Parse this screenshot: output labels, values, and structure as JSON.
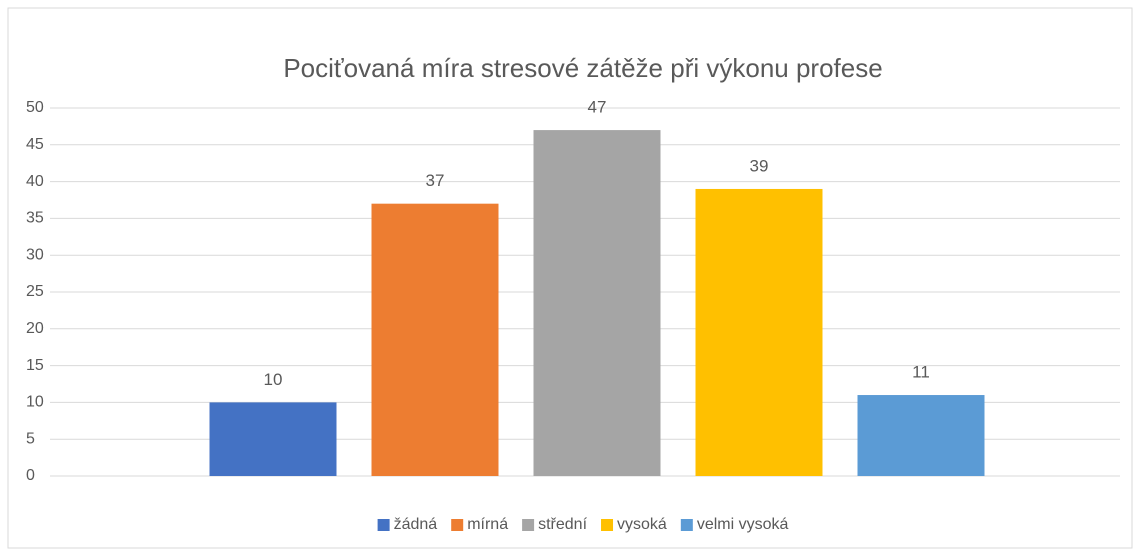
{
  "chart_data": {
    "type": "bar",
    "title": "Pociťovaná míra stresové zátěže při výkonu profese",
    "categories": [
      null
    ],
    "series": [
      {
        "name": "žádná",
        "color": "#4472c4",
        "values": [
          10
        ]
      },
      {
        "name": "mírná",
        "color": "#ed7d31",
        "values": [
          37
        ]
      },
      {
        "name": "střední",
        "color": "#a5a5a5",
        "values": [
          47
        ]
      },
      {
        "name": "vysoká",
        "color": "#ffc000",
        "values": [
          39
        ]
      },
      {
        "name": "velmi vysoká",
        "color": "#5b9bd5",
        "values": [
          11
        ]
      }
    ],
    "ylim": [
      0,
      50
    ],
    "yticks": [
      0,
      5,
      10,
      15,
      20,
      25,
      30,
      35,
      40,
      45,
      50
    ],
    "grid": true,
    "legend": "bottom"
  }
}
